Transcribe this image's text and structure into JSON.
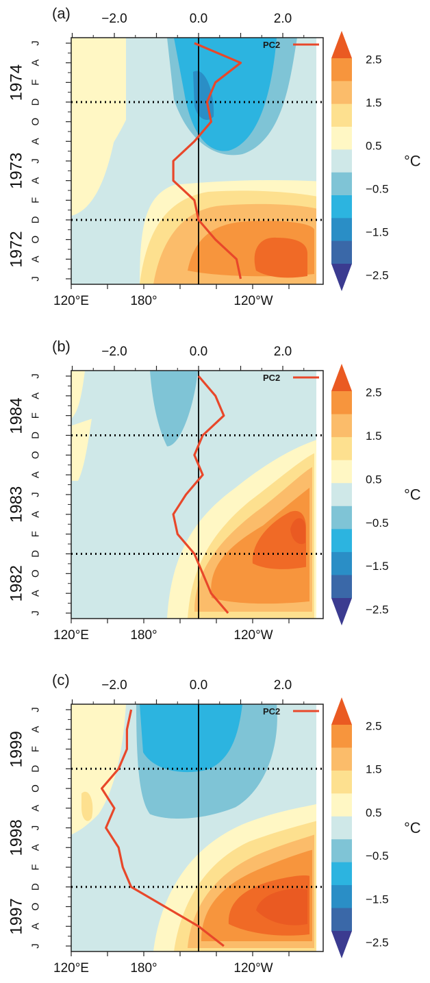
{
  "figure": {
    "colorbar": {
      "labels": [
        "2.5",
        "1.5",
        "0.5",
        "−0.5",
        "−1.5",
        "−2.5"
      ],
      "unit": "°C",
      "colors": [
        "#f06a26",
        "#f7953d",
        "#fbbc6a",
        "#fde08f",
        "#fff7c4",
        "#cfe8e8",
        "#7fc4d6",
        "#2cb4e0",
        "#2a8ec6",
        "#3a68a8",
        "#3b3b90"
      ]
    },
    "bottom_ticks": [
      "120°E",
      "180°",
      "120°W"
    ],
    "top_ticks": [
      "−2.0",
      "0.0",
      "2.0"
    ],
    "legend_label": "PC2"
  },
  "chart_data": [
    {
      "type": "heatmap",
      "panel_label": "(a)",
      "years": [
        "1972",
        "1973",
        "1974"
      ],
      "month_letters": [
        "J",
        "A",
        "O",
        "D",
        "F",
        "A",
        "J",
        "A",
        "O",
        "D",
        "F",
        "A",
        "J"
      ],
      "series": [
        {
          "name": "PC2",
          "color": "#e8472a",
          "y_month_index": [
            0,
            1,
            2,
            3,
            4,
            5,
            6,
            7,
            8,
            9,
            10,
            11,
            12
          ],
          "values": [
            1.0,
            0.9,
            0.4,
            0.0,
            -0.1,
            -0.6,
            -0.6,
            -0.1,
            0.3,
            0.2,
            0.4,
            1.0,
            -0.1
          ]
        }
      ],
      "xlim": [
        -3.0,
        3.0
      ],
      "dotted_lines_at_month_index": [
        3,
        9
      ]
    },
    {
      "type": "heatmap",
      "panel_label": "(b)",
      "years": [
        "1982",
        "1983",
        "1984"
      ],
      "month_letters": [
        "J",
        "A",
        "O",
        "D",
        "F",
        "A",
        "J",
        "A",
        "O",
        "D",
        "F",
        "A",
        "J"
      ],
      "series": [
        {
          "name": "PC2",
          "color": "#e8472a",
          "y_month_index": [
            0,
            1,
            2,
            3,
            4,
            5,
            6,
            7,
            8,
            9,
            10,
            11,
            12
          ],
          "values": [
            0.7,
            0.3,
            0.1,
            -0.1,
            -0.5,
            -0.6,
            -0.3,
            0.1,
            -0.1,
            0.1,
            0.6,
            0.4,
            0.0
          ]
        }
      ],
      "xlim": [
        -3.0,
        3.0
      ],
      "dotted_lines_at_month_index": [
        3,
        9
      ]
    },
    {
      "type": "heatmap",
      "panel_label": "(c)",
      "years": [
        "1997",
        "1998",
        "1999"
      ],
      "month_letters": [
        "J",
        "A",
        "O",
        "D",
        "F",
        "A",
        "J",
        "A",
        "O",
        "D",
        "F",
        "A",
        "J"
      ],
      "series": [
        {
          "name": "PC2",
          "color": "#e8472a",
          "y_month_index": [
            0,
            1,
            2,
            3,
            4,
            5,
            6,
            7,
            8,
            9,
            10,
            11,
            12
          ],
          "values": [
            0.6,
            0.0,
            -0.8,
            -1.6,
            -1.8,
            -1.9,
            -2.2,
            -2.0,
            -2.3,
            -1.9,
            -1.7,
            -1.7,
            -1.6
          ]
        }
      ],
      "xlim": [
        -3.0,
        3.0
      ],
      "dotted_lines_at_month_index": [
        3,
        9
      ]
    }
  ]
}
